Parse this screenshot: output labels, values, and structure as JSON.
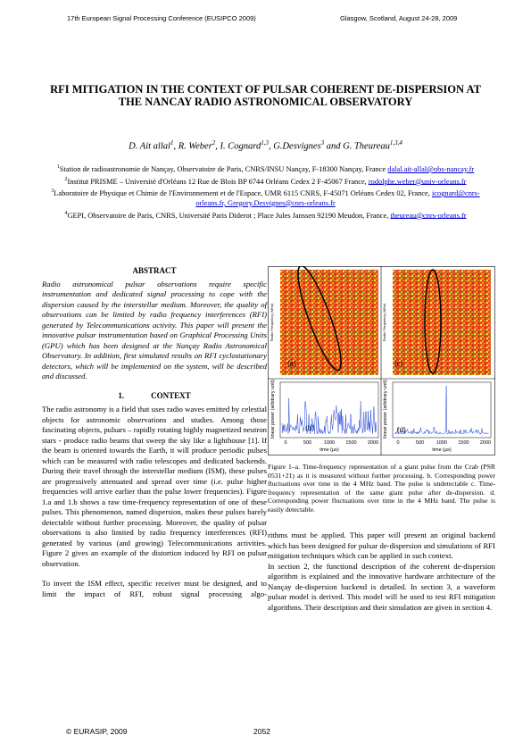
{
  "header": {
    "left": "17th European Signal Processing Conference (EUSIPCO 2009)",
    "right": "Glasgow, Scotland, August 24-28, 2009"
  },
  "title": "RFI MITIGATION IN THE CONTEXT OF PULSAR COHERENT DE-DISPERSION AT THE NANCAY RADIO ASTRONOMICAL OBSERVATORY",
  "authors": [
    {
      "text": "D. Ait allal",
      "sup": "1"
    },
    {
      "text": ", R. Weber",
      "sup": "2"
    },
    {
      "text": ", I. Cognard",
      "sup": "1,3"
    },
    {
      "text": ", G.Desvignes",
      "sup": "3"
    },
    {
      "text": " and G. Theureau",
      "sup": "1,3,4"
    }
  ],
  "affiliations": [
    {
      "sup": "1",
      "text": "Station de radioastronomie de Nançay, Observatoire de Paris, CNRS/INSU Nançay, F-18300 Nançay, France",
      "email": "dalal.ait-allal@obs-nancay.fr"
    },
    {
      "sup": "2",
      "text": "Institut PRISME – Université d'Orléans 12 Rue de Blois BP 6744 Orléans Cedex 2 F-45067 France,",
      "email": "rodolphe.weber@univ-orleans.fr"
    },
    {
      "sup": "3",
      "text": "Laboratoire de Physique et Chimie de l'Environnement et de l'Espace, UMR 6115 CNRS, F-45071 Orléans Cedex 02, France,",
      "email": "icognard@cnrs-orleans.fr, Gregory.Desvignes@cnrs-orleans.fr"
    },
    {
      "sup": "4",
      "text": "GEPI, Observatoire de Paris, CNRS, Université Paris Diderot ; Place Jules Janssen 92190 Meudon, France,",
      "email": "theureau@cnrs-orleans.fr"
    }
  ],
  "abstract": {
    "heading": "ABSTRACT",
    "text": "Radio astronomical pulsar observations require specific instrumentation and dedicated signal processing to cope with the dispersion caused by the interstellar medium. Moreover, the quality of observations can be limited by radio frequency interferences (RFI) generated by Telecommunications activity. This paper will present the innovative pulsar instrumentation based on Graphical Processing Units (GPU) which has been designed at the Nançay Radio Astronomical Observatory. In addition, first simulated results on RFI cyclostationary detectors, which will be implemented on the system, will be described and discussed."
  },
  "section": {
    "number": "1.",
    "heading": "CONTEXT",
    "paragraphs_left": [
      "The radio astronomy is a field that uses radio waves emitted by celestial objects for astronomic observations and studies. Among those fascinating objects, pulsars – rapidly rotating highly magnetized neutron stars - produce radio beams that sweep the sky like a lighthouse [1]. If the beam is oriented towards the Earth, it will produce periodic pulses which can be measured with radio telescopes and dedicated backends. During their travel through the interstellar medium (ISM), these pulses are progressively attenuated and spread over time (i.e. pulse higher frequencies will arrive earlier than the pulse lower frequencies). Figure 1.a and 1.b shows a raw time-frequency representation of one of these pulses. This phenomenon, named dispersion, makes these pulses barely detectable without further processing. Moreover, the quality of pulsar observations is also limited by radio frequency interferences (RFI) generated by various (and growing) Telecommunications activities. Figure 2 gives an example of the distortion induced by RFI on pulsar observation.",
      "To invert the ISM effect, specific receiver must be designed, and to limit the impact of RFI, robust signal processing algo-"
    ],
    "paragraphs_right": [
      "rithms must be applied. This paper will present an original backend which has been designed for pulsar de-dispersion and simulations of RFI mitigation techniques which can be applied in such context.",
      "In section 2, the functional description of the coherent de-dispersion algorithm is explained and the innovative hardware architecture of the Nançay de-dispersion backend is detailed. In section 3, a waveform pulsar model is derived. This model will be used to test RFI mitigation algorithms. Their description and their simulation are given in section 4."
    ]
  },
  "figure": {
    "panels": [
      "(a)",
      "(c)",
      "(b)",
      "(d)"
    ],
    "freq_label": "Radio Frequency (MHz)",
    "power_label": "linear power (arbitrary unit)",
    "xticks": [
      "0",
      "500",
      "1000",
      "1500",
      "2000"
    ],
    "xlabel": "time (µs)",
    "caption": "Figure 1–a. Time-frequency representation of a giant pulse from the Crab (PSR 0531+21) as it is measured without further processing. b. Corresponding power fluctuations over time in the 4 MHz band. The pulse is undetectable c. Time-frequency representation of the same giant pulse after de-dispersion. d. Corresponding power fluctuations over time in the 4 MHz band. The pulse is easily detectable."
  },
  "footer": {
    "left": "© EURASIP, 2009",
    "page": "2052"
  }
}
